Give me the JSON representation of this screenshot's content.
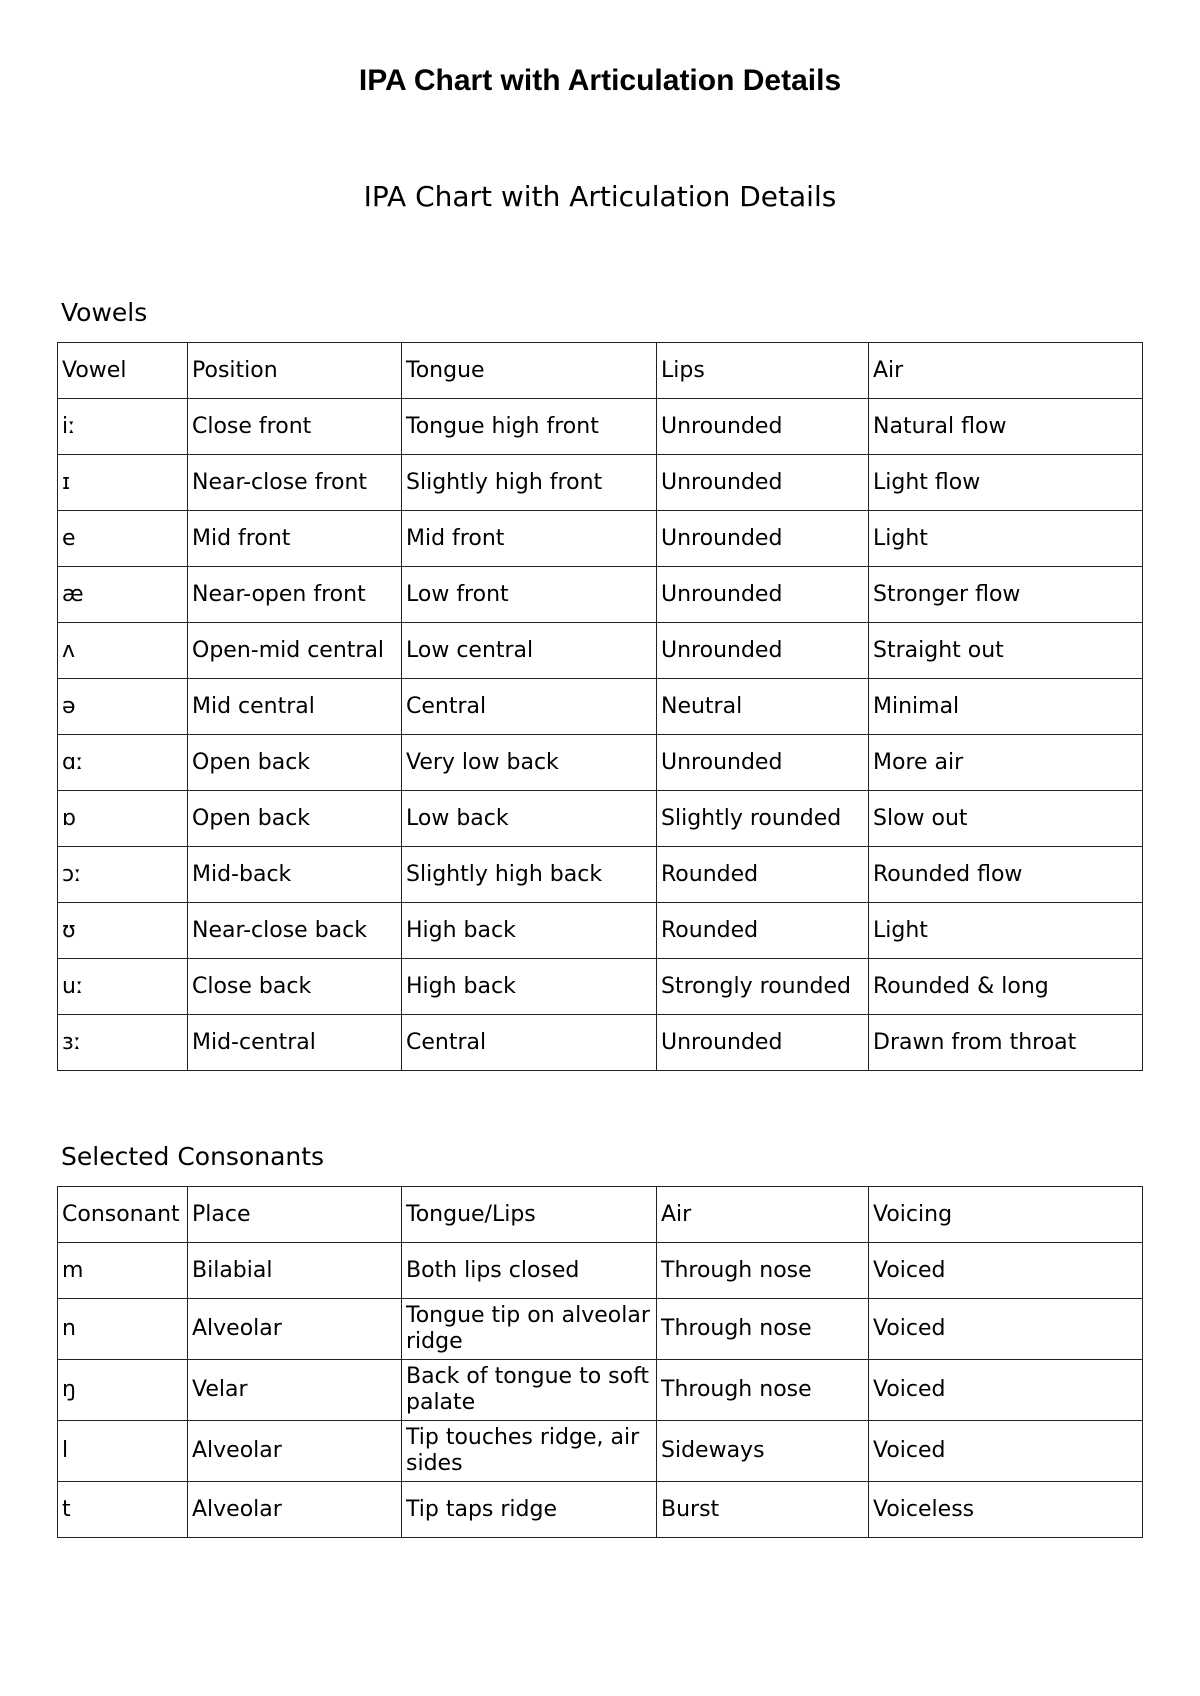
{
  "document": {
    "title": "IPA Chart with Articulation Details",
    "subtitle": "IPA Chart with Articulation Details"
  },
  "vowels": {
    "heading": "Vowels",
    "columns": [
      "Vowel",
      "Position",
      "Tongue",
      "Lips",
      "Air"
    ],
    "rows": [
      [
        "iː",
        "Close front",
        "Tongue high front",
        "Unrounded",
        "Natural flow"
      ],
      [
        "ɪ",
        "Near-close front",
        "Slightly high front",
        "Unrounded",
        "Light flow"
      ],
      [
        "e",
        "Mid front",
        "Mid front",
        "Unrounded",
        "Light"
      ],
      [
        "æ",
        "Near-open front",
        "Low front",
        "Unrounded",
        "Stronger flow"
      ],
      [
        "ʌ",
        "Open-mid central",
        "Low central",
        "Unrounded",
        "Straight out"
      ],
      [
        "ə",
        "Mid central",
        "Central",
        "Neutral",
        "Minimal"
      ],
      [
        "ɑː",
        "Open back",
        "Very low back",
        "Unrounded",
        "More air"
      ],
      [
        "ɒ",
        "Open back",
        "Low back",
        "Slightly rounded",
        "Slow out"
      ],
      [
        "ɔː",
        "Mid-back",
        "Slightly high back",
        "Rounded",
        "Rounded flow"
      ],
      [
        "ʊ",
        "Near-close back",
        "High back",
        "Rounded",
        "Light"
      ],
      [
        "uː",
        "Close back",
        "High back",
        "Strongly rounded",
        "Rounded & long"
      ],
      [
        "ɜː",
        "Mid-central",
        "Central",
        "Unrounded",
        "Drawn from throat"
      ]
    ]
  },
  "consonants": {
    "heading": "Selected Consonants",
    "columns": [
      "Consonant",
      "Place",
      "Tongue/Lips",
      "Air",
      "Voicing"
    ],
    "rows": [
      [
        "m",
        "Bilabial",
        "Both lips closed",
        "Through nose",
        "Voiced"
      ],
      [
        "n",
        "Alveolar",
        "Tongue tip on alveolar ridge",
        "Through nose",
        "Voiced"
      ],
      [
        "ŋ",
        "Velar",
        "Back of tongue to soft palate",
        "Through nose",
        "Voiced"
      ],
      [
        "l",
        "Alveolar",
        "Tip touches ridge, air sides",
        "Sideways",
        "Voiced"
      ],
      [
        "t",
        "Alveolar",
        "Tip taps ridge",
        "Burst",
        "Voiceless"
      ]
    ]
  }
}
